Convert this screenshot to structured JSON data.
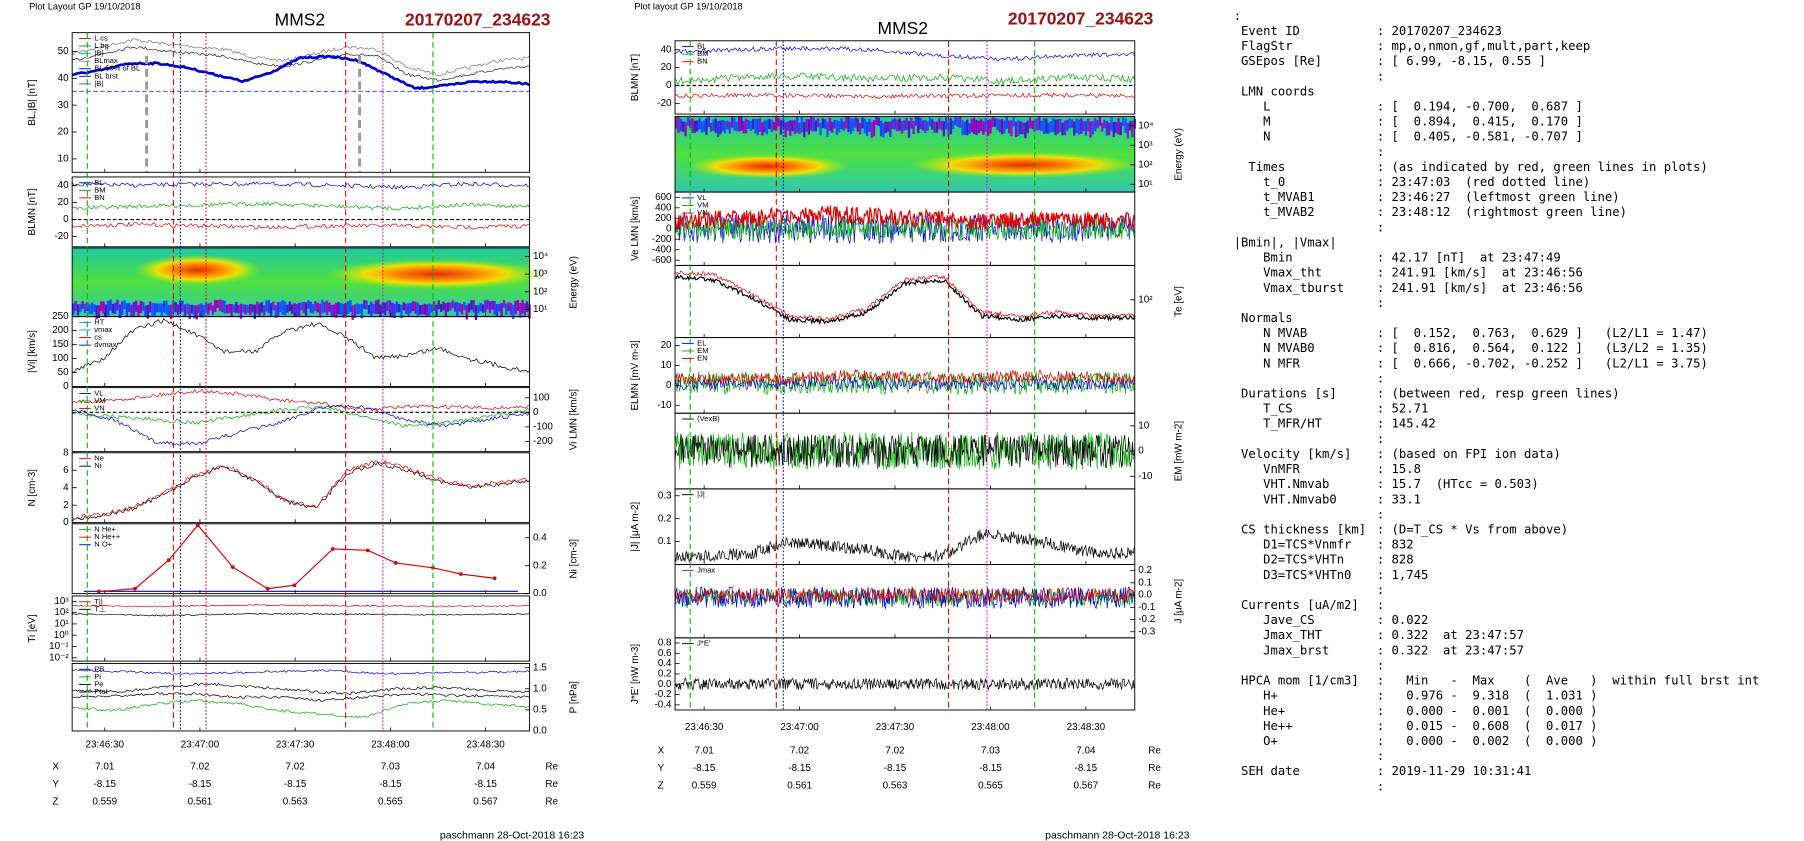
{
  "left": {
    "header": "Plot Layout GP 19/10/2018",
    "title": "MMS2",
    "event": "20170207_234623",
    "panels": [
      {
        "ylabel": "BL,|B| [nT]",
        "side": "left",
        "ylim": [
          5,
          57
        ],
        "yticks": [
          10,
          20,
          30,
          40,
          50
        ],
        "legend": [
          {
            "name": "L cs",
            "color": "#e00000"
          },
          {
            "name": "L bg",
            "color": "#00a000"
          },
          {
            "name": "|B|",
            "color": "#00c0c0"
          },
          {
            "name": "BLmax",
            "color": "#888888"
          },
          {
            "name": "BL 50% of BL",
            "color": "#0000e0"
          },
          {
            "name": "BL brst",
            "color": "#0000e0"
          },
          {
            "name": "|B|",
            "color": "#555555"
          }
        ]
      },
      {
        "ylabel": "BLMN [nT]",
        "side": "left",
        "ylim": [
          -32,
          50
        ],
        "yticks": [
          -20,
          0,
          20,
          40
        ],
        "legend": [
          {
            "name": "BL",
            "color": "#0000e0"
          },
          {
            "name": "BM",
            "color": "#00b000"
          },
          {
            "name": "BN",
            "color": "#e00000"
          }
        ]
      },
      {
        "ylabel": "Energy (eV)",
        "side": "right",
        "log": true,
        "ylim": [
          4,
          30000
        ],
        "yticks": [
          {
            "value": 10,
            "label": "10¹"
          },
          {
            "value": 100,
            "label": "10²"
          },
          {
            "value": 1000,
            "label": "10³"
          },
          {
            "value": 10000,
            "label": "10⁴"
          }
        ]
      },
      {
        "ylabel": "|Vi| [km/s]",
        "side": "left",
        "ylim": [
          0,
          250
        ],
        "yticks": [
          0,
          50,
          100,
          150,
          200,
          250
        ],
        "legend": [
          {
            "name": "HT",
            "color": "#00a0a0"
          },
          {
            "name": "vmax",
            "color": "#00a0ff"
          },
          {
            "name": "cs",
            "color": "#e00000"
          },
          {
            "name": "dvmax",
            "color": "#0000e0"
          }
        ]
      },
      {
        "ylabel": "Vi LMN [km/s]",
        "side": "right",
        "ylim": [
          -270,
          170
        ],
        "yticks": [
          -200,
          -100,
          0,
          100
        ],
        "legend": [
          {
            "name": "VL",
            "color": "#0000e0"
          },
          {
            "name": "VM",
            "color": "#00b000"
          },
          {
            "name": "VN",
            "color": "#e00000"
          }
        ]
      },
      {
        "ylabel": "N [cm-3]",
        "side": "left",
        "ylim": [
          0,
          8
        ],
        "yticks": [
          0,
          2,
          4,
          6,
          8
        ],
        "legend": [
          {
            "name": "Ne",
            "color": "#e00000"
          },
          {
            "name": "Ni",
            "color": "#000000"
          }
        ]
      },
      {
        "ylabel": "Ni [cm-3]",
        "side": "right",
        "ylim": [
          0,
          0.5
        ],
        "yticks": [
          {
            "value": 0,
            "label": "0.0"
          },
          0.2,
          0.4
        ],
        "legend": [
          {
            "name": "N He+",
            "color": "#00b000"
          },
          {
            "name": "N He++",
            "color": "#e00000"
          },
          {
            "name": "N O+",
            "color": "#0000e0"
          }
        ]
      },
      {
        "ylabel": "Ti [eV]",
        "side": "left",
        "log": true,
        "ylim": [
          0.005,
          3000
        ],
        "yticks": [
          {
            "value": 0.01,
            "label": "10⁻²"
          },
          {
            "value": 0.1,
            "label": "10⁻¹"
          },
          {
            "value": 1,
            "label": "10⁰"
          },
          {
            "value": 10,
            "label": "10¹"
          },
          {
            "value": 100,
            "label": "10²"
          },
          {
            "value": 1000,
            "label": "10³"
          }
        ],
        "legend": [
          {
            "name": "T||",
            "color": "#e00000"
          },
          {
            "name": "T⊥",
            "color": "#000000"
          }
        ]
      },
      {
        "ylabel": "P [nPa]",
        "side": "right",
        "ylim": [
          0,
          1.6
        ],
        "yticks": [
          {
            "value": 0,
            "label": "0.0"
          },
          0.5,
          {
            "value": 1,
            "label": "1.0"
          },
          1.5
        ],
        "legend": [
          {
            "name": "PB",
            "color": "#0000e0"
          },
          {
            "name": "Pi",
            "color": "#00b000"
          },
          {
            "name": "Pe",
            "color": "#000000"
          },
          {
            "name": "Ptot",
            "color": "#000000"
          }
        ]
      }
    ],
    "xticks": [
      "23:46:30",
      "23:47:00",
      "23:47:30",
      "23:48:00",
      "23:48:30"
    ],
    "rows": [
      {
        "label": "X",
        "values": [
          7.01,
          7.02,
          7.02,
          7.03,
          7.04
        ],
        "unit": "Re"
      },
      {
        "label": "Y",
        "values": [
          -8.15,
          -8.15,
          -8.15,
          -8.15,
          -8.15
        ],
        "unit": "Re"
      },
      {
        "label": "Z",
        "values": [
          0.559,
          0.561,
          0.563,
          0.565,
          0.567
        ],
        "unit": "Re"
      }
    ],
    "footer": "paschmann 28-Oct-2018 16:23"
  },
  "middle": {
    "header": "Plot layout GP 19/10/2018",
    "title": "MMS2",
    "event": "20170207_234623",
    "panels": [
      {
        "ylabel": "BLMN [nT]",
        "side": "left",
        "ylim": [
          -32,
          50
        ],
        "yticks": [
          -20,
          0,
          20,
          40
        ],
        "legend": [
          {
            "name": "BL",
            "color": "#0000e0"
          },
          {
            "name": "BM",
            "color": "#00b000"
          },
          {
            "name": "BN",
            "color": "#e00000"
          }
        ]
      },
      {
        "ylabel": "Energy (eV)",
        "side": "right",
        "log": true,
        "ylim": [
          4,
          30000
        ],
        "yticks": [
          {
            "value": 10,
            "label": "10¹"
          },
          {
            "value": 100,
            "label": "10²"
          },
          {
            "value": 1000,
            "label": "10³"
          },
          {
            "value": 10000,
            "label": "10⁴"
          }
        ]
      },
      {
        "ylabel": "Ve LMN [km/s]",
        "side": "left",
        "ylim": [
          -700,
          700
        ],
        "yticks": [
          -600,
          -400,
          -200,
          0,
          200,
          400,
          600
        ],
        "legend": [
          {
            "name": "VL",
            "color": "#0000e0"
          },
          {
            "name": "VM",
            "color": "#00b000"
          },
          {
            "name": "VN",
            "color": "#e00000"
          }
        ]
      },
      {
        "ylabel": "Te [eV]",
        "side": "right",
        "log": true,
        "ylim": [
          30,
          300
        ],
        "yticks": [
          {
            "value": 100,
            "label": "10²"
          }
        ]
      },
      {
        "ylabel": "ELMN [mV m-3]",
        "side": "left",
        "ylim": [
          -14,
          24
        ],
        "yticks": [
          -10,
          0,
          10,
          20
        ],
        "legend": [
          {
            "name": "EL",
            "color": "#0000e0"
          },
          {
            "name": "EM",
            "color": "#00b000"
          },
          {
            "name": "EN",
            "color": "#e00000"
          }
        ]
      },
      {
        "ylabel": "EM [mW m-2]",
        "side": "right",
        "ylim": [
          -15,
          15
        ],
        "yticks": [
          -10,
          0,
          10
        ],
        "legend": [
          {
            "name": "(VexB)",
            "color": "#000000"
          }
        ]
      },
      {
        "ylabel": "|J| [μA m-2]",
        "side": "left",
        "ylim": [
          0,
          0.33
        ],
        "yticks": [
          0.1,
          0.2,
          0.3
        ],
        "legend": [
          {
            "name": "|J|",
            "color": "#000000"
          }
        ]
      },
      {
        "ylabel": "J [μA m-2]",
        "side": "right",
        "ylim": [
          -0.35,
          0.25
        ],
        "yticks": [
          0.2,
          0.1,
          {
            "value": 0,
            "label": "0.0"
          },
          -0.1,
          -0.2,
          -0.3
        ],
        "legend": [
          {
            "name": "Jmax",
            "color": "#a000a0"
          }
        ]
      },
      {
        "ylabel": "J*E' [nW m-3]",
        "side": "left",
        "ylim": [
          -0.5,
          0.9
        ],
        "yticks": [
          -0.4,
          -0.2,
          {
            "value": 0,
            "label": "0.0"
          },
          0.2,
          0.4,
          0.6,
          0.8
        ],
        "legend": [
          {
            "name": "J*E'",
            "color": "#000000"
          }
        ]
      }
    ],
    "xticks": [
      "23:46:30",
      "23:47:00",
      "23:47:30",
      "23:48:00",
      "23:48:30"
    ],
    "rows": [
      {
        "label": "X",
        "values": [
          7.01,
          7.02,
          7.02,
          7.03,
          7.04
        ],
        "unit": "Re"
      },
      {
        "label": "Y",
        "values": [
          -8.15,
          -8.15,
          -8.15,
          -8.15,
          -8.15
        ],
        "unit": "Re"
      },
      {
        "label": "Z",
        "values": [
          0.559,
          0.561,
          0.563,
          0.565,
          0.567
        ],
        "unit": "Re"
      }
    ],
    "footer": "paschmann 28-Oct-2018 16:23"
  },
  "info": {
    "lines": [
      {
        "k": ":"
      },
      {
        "k": " Event ID",
        "v": ": 20170207_234623"
      },
      {
        "k": " FlagStr",
        "v": ": mp,o,nmon,gf,mult,part,keep"
      },
      {
        "k": " GSEpos [Re]",
        "v": ": [ 6.99, -8.15, 0.55 ]"
      },
      {
        "v": ":"
      },
      {
        "k": " LMN coords"
      },
      {
        "k": "    L",
        "v": ": [  0.194, -0.700,  0.687 ]"
      },
      {
        "k": "    M",
        "v": ": [  0.894,  0.415,  0.170 ]"
      },
      {
        "k": "    N",
        "v": ": [  0.405, -0.581, -0.707 ]"
      },
      {
        "v": ":"
      },
      {
        "k": "  Times",
        "v": ": (as indicated by red, green lines in plots)"
      },
      {
        "k": "    t_0",
        "v": ": 23:47:03  (red dotted line)"
      },
      {
        "k": "    t_MVAB1",
        "v": ": 23:46:27  (leftmost green line)"
      },
      {
        "k": "    t_MVAB2",
        "v": ": 23:48:12  (rightmost green line)"
      },
      {
        "v": ":"
      },
      {
        "k": "|Bmin|, |Vmax|"
      },
      {
        "k": "    Bmin",
        "v": ": 42.17 [nT]  at 23:47:49"
      },
      {
        "k": "    Vmax_tht",
        "v": ": 241.91 [km/s]  at 23:46:56"
      },
      {
        "k": "    Vmax_tburst",
        "v": ": 241.91 [km/s]  at 23:46:56"
      },
      {
        "v": ":"
      },
      {
        "k": " Normals"
      },
      {
        "k": "    N MVAB",
        "v": ": [  0.152,  0.763,  0.629 ]   (L2/L1 = 1.47)"
      },
      {
        "k": "    N MVAB0",
        "v": ": [  0.816,  0.564,  0.122 ]   (L3/L2 = 1.35)"
      },
      {
        "k": "    N MFR",
        "v": ": [  0.666, -0.702, -0.252 ]   (L2/L1 = 3.75)"
      },
      {
        "v": ":"
      },
      {
        "k": " Durations [s]",
        "v": ": (between red, resp green lines)"
      },
      {
        "k": "    T_CS",
        "v": ": 52.71"
      },
      {
        "k": "    T_MFR/HT",
        "v": ": 145.42"
      },
      {
        "v": ":"
      },
      {
        "k": " Velocity [km/s]",
        "v": ": (based on FPI ion data)"
      },
      {
        "k": "    VnMFR",
        "v": ": 15.8"
      },
      {
        "k": "    VHT.Nmvab",
        "v": ": 15.7  (HTcc = 0.503)"
      },
      {
        "k": "    VHT.Nmvab0",
        "v": ": 33.1"
      },
      {
        "v": ":"
      },
      {
        "k": " CS thickness [km]",
        "v": ": (D=T_CS * Vs from above)"
      },
      {
        "k": "    D1=TCS*Vnmfr",
        "v": ": 832"
      },
      {
        "k": "    D2=TCS*VHTn",
        "v": ": 828"
      },
      {
        "k": "    D3=TCS*VHTn0",
        "v": ": 1,745"
      },
      {
        "v": ":"
      },
      {
        "k": " Currents [uA/m2]",
        "v": ":"
      },
      {
        "k": "    Jave_CS",
        "v": ": 0.022"
      },
      {
        "k": "    Jmax_THT",
        "v": ": 0.322  at 23:47:57"
      },
      {
        "k": "    Jmax_brst",
        "v": ": 0.322  at 23:47:57"
      },
      {
        "v": ":"
      },
      {
        "k": " HPCA mom [1/cm3]",
        "v": ":   Min   -  Max    (  Ave   )  within full brst int"
      },
      {
        "k": "    H+",
        "v": ":   0.976 -  9.318  (  1.031 )"
      },
      {
        "k": "    He+",
        "v": ":   0.000 -  0.001  (  0.000 )"
      },
      {
        "k": "    He++",
        "v": ":   0.015 -  0.608  (  0.017 )"
      },
      {
        "k": "    O+",
        "v": ":   0.000 -  0.002  (  0.000 )"
      },
      {
        "v": ":"
      },
      {
        "k": " SEH date",
        "v": ": 2019-11-29 10:31:41"
      },
      {
        "v": ":"
      }
    ]
  }
}
